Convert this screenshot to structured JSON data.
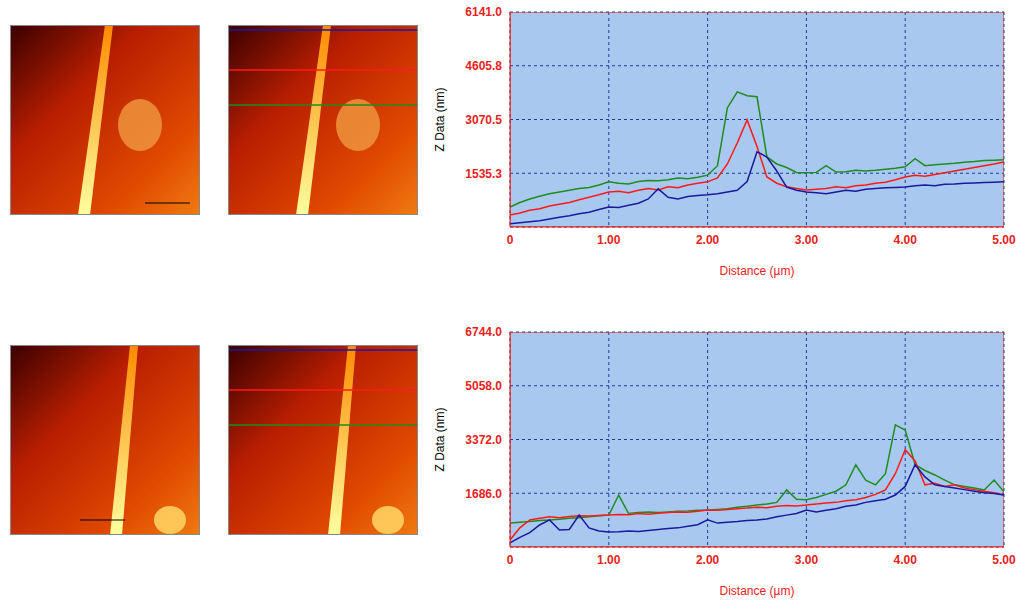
{
  "chart_data": [
    {
      "type": "line",
      "xlabel": "Distance (µm)",
      "ylabel": "Z Data (nm)",
      "x": [
        0,
        0.1,
        0.2,
        0.3,
        0.4,
        0.5,
        0.6,
        0.7,
        0.8,
        0.9,
        1,
        1.1,
        1.2,
        1.3,
        1.4,
        1.5,
        1.6,
        1.7,
        1.8,
        1.9,
        2,
        2.1,
        2.2,
        2.3,
        2.4,
        2.5,
        2.6,
        2.7,
        2.8,
        2.9,
        3,
        3.1,
        3.2,
        3.3,
        3.4,
        3.5,
        3.6,
        3.7,
        3.8,
        3.9,
        4,
        4.1,
        4.2,
        4.3,
        4.4,
        4.5,
        4.6,
        4.7,
        4.8,
        4.9,
        5
      ],
      "series": [
        {
          "color": "#1e8c1e",
          "values": [
            570,
            700,
            800,
            880,
            950,
            1000,
            1050,
            1100,
            1130,
            1200,
            1290,
            1250,
            1230,
            1300,
            1330,
            1320,
            1350,
            1400,
            1380,
            1420,
            1480,
            1750,
            3400,
            3860,
            3750,
            3720,
            2000,
            1800,
            1700,
            1560,
            1550,
            1560,
            1750,
            1570,
            1580,
            1620,
            1600,
            1620,
            1650,
            1680,
            1720,
            1950,
            1750,
            1780,
            1800,
            1820,
            1850,
            1870,
            1900,
            1910,
            1920
          ]
        },
        {
          "color": "#ff1a1a",
          "values": [
            340,
            400,
            480,
            520,
            600,
            650,
            700,
            780,
            850,
            920,
            1000,
            1020,
            980,
            1050,
            1100,
            1060,
            1150,
            1120,
            1200,
            1250,
            1290,
            1400,
            1800,
            2400,
            3060,
            2300,
            1430,
            1250,
            1150,
            1100,
            1060,
            1080,
            1100,
            1150,
            1120,
            1180,
            1200,
            1250,
            1280,
            1350,
            1430,
            1480,
            1450,
            1500,
            1550,
            1600,
            1650,
            1700,
            1750,
            1800,
            1860
          ]
        },
        {
          "color": "#1a1a9c",
          "values": [
            90,
            120,
            150,
            180,
            230,
            280,
            320,
            380,
            420,
            500,
            570,
            560,
            620,
            680,
            800,
            1090,
            850,
            800,
            870,
            900,
            920,
            950,
            1000,
            1050,
            1300,
            2150,
            2000,
            1600,
            1140,
            1050,
            1000,
            980,
            950,
            1000,
            1050,
            1020,
            1080,
            1100,
            1120,
            1130,
            1140,
            1180,
            1200,
            1180,
            1220,
            1230,
            1250,
            1260,
            1270,
            1280,
            1290
          ]
        }
      ],
      "xlim": [
        0,
        5
      ],
      "xticks": [
        0,
        {
          "value": 1,
          "label": "1.00"
        },
        {
          "value": 2,
          "label": "2.00"
        },
        {
          "value": 3,
          "label": "3.00"
        },
        {
          "value": 4,
          "label": "4.00"
        },
        {
          "value": 5,
          "label": "5.00"
        }
      ],
      "ylim": [
        0,
        6141
      ],
      "yticks": [
        1535.3,
        3070.5,
        4605.8,
        {
          "value": 6141,
          "label": "6141.0"
        }
      ],
      "grid": true
    },
    {
      "type": "line",
      "xlabel": "Distance (µm)",
      "ylabel": "Z Data (nm)",
      "x": [
        0,
        0.1,
        0.2,
        0.3,
        0.4,
        0.5,
        0.6,
        0.7,
        0.8,
        0.9,
        1,
        1.1,
        1.2,
        1.3,
        1.4,
        1.5,
        1.6,
        1.7,
        1.8,
        1.9,
        2,
        2.1,
        2.2,
        2.3,
        2.4,
        2.5,
        2.6,
        2.7,
        2.8,
        2.9,
        3,
        3.1,
        3.2,
        3.3,
        3.4,
        3.5,
        3.6,
        3.7,
        3.8,
        3.9,
        4,
        4.1,
        4.2,
        4.3,
        4.4,
        4.5,
        4.6,
        4.7,
        4.8,
        4.9,
        5
      ],
      "series": [
        {
          "color": "#1e8c1e",
          "values": [
            750,
            780,
            800,
            830,
            850,
            870,
            900,
            920,
            950,
            980,
            1000,
            1630,
            1050,
            1080,
            1100,
            1080,
            1100,
            1120,
            1130,
            1150,
            1160,
            1180,
            1200,
            1250,
            1280,
            1320,
            1350,
            1400,
            1790,
            1500,
            1480,
            1550,
            1650,
            1750,
            1950,
            2580,
            2100,
            1950,
            2300,
            3830,
            3670,
            2580,
            2400,
            2260,
            2100,
            1950,
            1900,
            1850,
            1790,
            2100,
            1730
          ]
        },
        {
          "color": "#ff1a1a",
          "values": [
            220,
            600,
            850,
            900,
            950,
            920,
            960,
            980,
            970,
            990,
            1000,
            1020,
            1010,
            1050,
            1030,
            1060,
            1080,
            1100,
            1090,
            1120,
            1160,
            1150,
            1180,
            1200,
            1220,
            1250,
            1230,
            1280,
            1300,
            1290,
            1320,
            1350,
            1380,
            1400,
            1450,
            1480,
            1550,
            1650,
            1790,
            2300,
            3050,
            2700,
            1950,
            2000,
            1900,
            1950,
            1850,
            1800,
            1750,
            1700,
            1630
          ]
        },
        {
          "color": "#1a1a9c",
          "values": [
            130,
            300,
            450,
            690,
            850,
            530,
            550,
            1000,
            600,
            500,
            470,
            480,
            500,
            490,
            520,
            550,
            580,
            600,
            650,
            700,
            850,
            750,
            780,
            800,
            830,
            850,
            880,
            950,
            1000,
            1050,
            1160,
            1100,
            1150,
            1200,
            1280,
            1320,
            1400,
            1450,
            1500,
            1630,
            1900,
            2580,
            2200,
            1950,
            1900,
            1850,
            1800,
            1750,
            1700,
            1680,
            1630
          ]
        }
      ],
      "xlim": [
        0,
        5
      ],
      "xticks": [
        0,
        {
          "value": 1,
          "label": "1.00"
        },
        {
          "value": 2,
          "label": "2.00"
        },
        {
          "value": 3,
          "label": "3.00"
        },
        {
          "value": 4,
          "label": "4.00"
        },
        {
          "value": 5,
          "label": "5.00"
        }
      ],
      "ylim": [
        0,
        6744
      ],
      "yticks": [
        {
          "value": 1686,
          "label": "1686.0"
        },
        {
          "value": 3372,
          "label": "3372.0"
        },
        {
          "value": 5058,
          "label": "5058.0"
        },
        {
          "value": 6744,
          "label": "6744.0"
        }
      ],
      "grid": true
    }
  ]
}
